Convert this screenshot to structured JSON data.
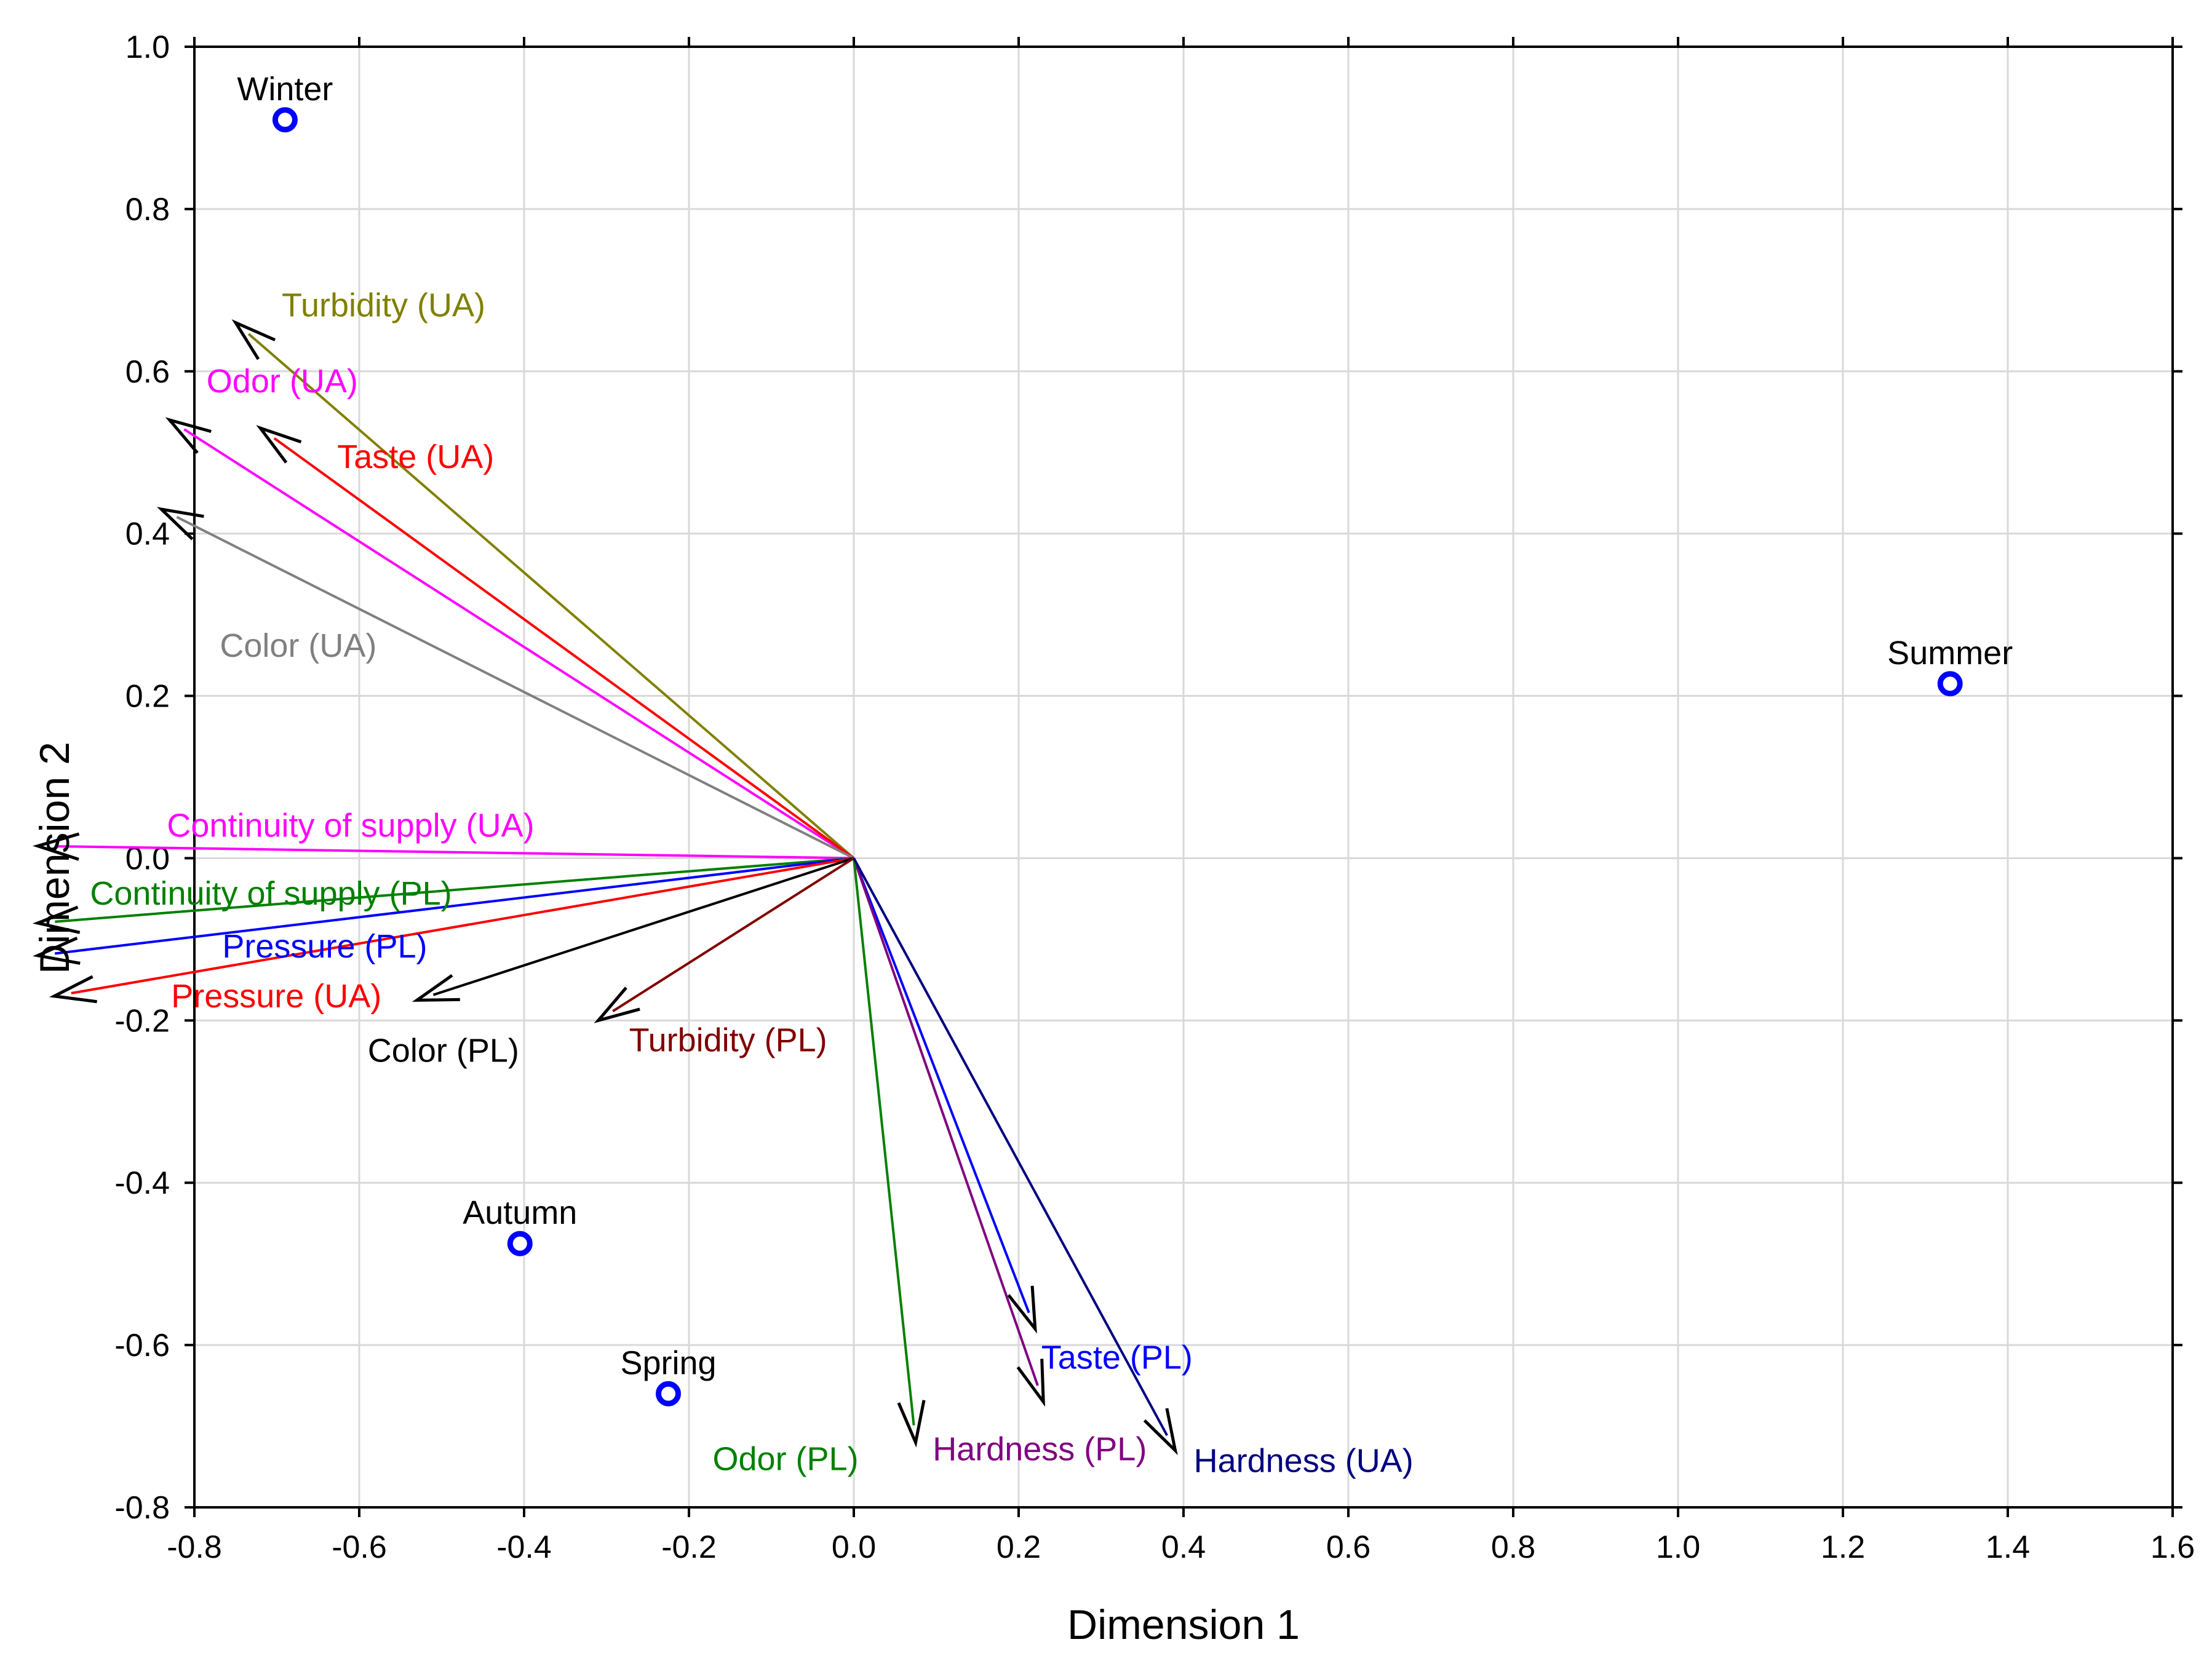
{
  "chart_data": {
    "type": "scatter",
    "title": "",
    "xlabel": "Dimension 1",
    "ylabel": "Dimension 2",
    "xlim": [
      -0.8,
      1.6
    ],
    "ylim": [
      -0.8,
      1.0
    ],
    "grid": true,
    "xticks": [
      -0.8,
      -0.6,
      -0.4,
      -0.2,
      0.0,
      0.2,
      0.4,
      0.6,
      0.8,
      1.0,
      1.2,
      1.4,
      1.6
    ],
    "yticks": [
      -0.8,
      -0.6,
      -0.4,
      -0.2,
      0.0,
      0.2,
      0.4,
      0.6,
      0.8,
      1.0
    ],
    "xtick_labels": [
      "-0.8",
      "-0.6",
      "-0.4",
      "-0.2",
      "0.0",
      "0.2",
      "0.4",
      "0.6",
      "0.8",
      "1.0",
      "1.2",
      "1.4",
      "1.6"
    ],
    "ytick_labels": [
      "-0.8",
      "-0.6",
      "-0.4",
      "-0.2",
      "0.0",
      "0.2",
      "0.4",
      "0.6",
      "0.8",
      "1.0"
    ],
    "points": [
      {
        "name": "Winter",
        "x": -0.69,
        "y": 0.91,
        "color": "#0000ff"
      },
      {
        "name": "Summer",
        "x": 1.33,
        "y": 0.215,
        "color": "#0000ff"
      },
      {
        "name": "Autumn",
        "x": -0.405,
        "y": -0.475,
        "color": "#0000ff"
      },
      {
        "name": "Spring",
        "x": -0.225,
        "y": -0.66,
        "color": "#0000ff"
      }
    ],
    "vectors": [
      {
        "name": "Turbidity (UA)",
        "x": -0.75,
        "y": 0.66,
        "color": "#808000"
      },
      {
        "name": "Odor (UA)",
        "x": -0.83,
        "y": 0.54,
        "color": "#ff00ff"
      },
      {
        "name": "Taste (UA)",
        "x": -0.72,
        "y": 0.53,
        "color": "#ff0000"
      },
      {
        "name": "Color (UA)",
        "x": -0.84,
        "y": 0.43,
        "color": "#808080"
      },
      {
        "name": "Continuity of supply (UA)",
        "x": -0.99,
        "y": 0.015,
        "color": "#ff00ff"
      },
      {
        "name": "Continuity of supply (PL)",
        "x": -0.99,
        "y": -0.08,
        "color": "#008000"
      },
      {
        "name": "Pressure (PL)",
        "x": -0.99,
        "y": -0.12,
        "color": "#0000ff"
      },
      {
        "name": "Pressure (UA)",
        "x": -0.97,
        "y": -0.17,
        "color": "#ff0000"
      },
      {
        "name": "Color (PL)",
        "x": -0.53,
        "y": -0.175,
        "color": "#000000"
      },
      {
        "name": "Turbidity (PL)",
        "x": -0.31,
        "y": -0.2,
        "color": "#800000"
      },
      {
        "name": "Taste (PL)",
        "x": 0.22,
        "y": -0.58,
        "color": "#0000ff"
      },
      {
        "name": "Hardness (PL)",
        "x": 0.23,
        "y": -0.67,
        "color": "#800080"
      },
      {
        "name": "Odor (PL)",
        "x": 0.075,
        "y": -0.72,
        "color": "#008000"
      },
      {
        "name": "Hardness (UA)",
        "x": 0.39,
        "y": -0.73,
        "color": "#000080"
      }
    ]
  }
}
